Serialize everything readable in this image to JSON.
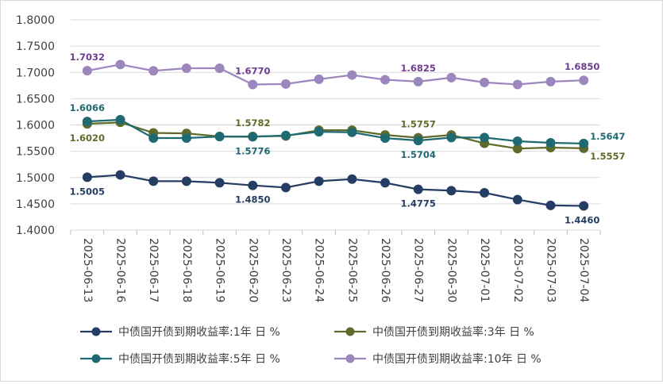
{
  "chart_data": {
    "type": "line",
    "title": "",
    "xlabel": "",
    "ylabel": "",
    "ylim": [
      1.4,
      1.8
    ],
    "yticks": [
      "1.4000",
      "1.4500",
      "1.5000",
      "1.5500",
      "1.6000",
      "1.6500",
      "1.7000",
      "1.7500",
      "1.8000"
    ],
    "categories": [
      "2025-06-13",
      "2025-06-16",
      "2025-06-17",
      "2025-06-18",
      "2025-06-19",
      "2025-06-20",
      "2025-06-23",
      "2025-06-24",
      "2025-06-25",
      "2025-06-26",
      "2025-06-27",
      "2025-06-30",
      "2025-07-01",
      "2025-07-02",
      "2025-07-03",
      "2025-07-04"
    ],
    "legend_position": "bottom",
    "series": [
      {
        "name": "中债国开债到期收益率:1年 日 %",
        "color": "#253D63",
        "values": [
          1.5005,
          1.505,
          1.493,
          1.493,
          1.49,
          1.485,
          1.481,
          1.493,
          1.497,
          1.49,
          1.4775,
          1.475,
          1.471,
          1.458,
          1.447,
          1.446
        ],
        "labels": [
          {
            "index": 0,
            "text": "1.5005",
            "pos": "below"
          },
          {
            "index": 5,
            "text": "1.4850",
            "pos": "below"
          },
          {
            "index": 10,
            "text": "1.4775",
            "pos": "below"
          },
          {
            "index": 15,
            "text": "1.4460",
            "pos": "below"
          }
        ]
      },
      {
        "name": "中债国开债到期收益率:3年 日 %",
        "color": "#5F6B2A",
        "values": [
          1.602,
          1.605,
          1.585,
          1.584,
          1.5782,
          1.5782,
          1.579,
          1.59,
          1.59,
          1.581,
          1.5757,
          1.581,
          1.565,
          1.555,
          1.557,
          1.5557
        ],
        "labels": [
          {
            "index": 0,
            "text": "1.6020",
            "pos": "below"
          },
          {
            "index": 5,
            "text": "1.5782",
            "pos": "above"
          },
          {
            "index": 10,
            "text": "1.5757",
            "pos": "above"
          },
          {
            "index": 15,
            "text": "1.5557",
            "pos": "below-right"
          }
        ]
      },
      {
        "name": "中债国开债到期收益率:5年 日 %",
        "color": "#1F6A72",
        "values": [
          1.6066,
          1.61,
          1.575,
          1.575,
          1.578,
          1.5776,
          1.58,
          1.587,
          1.586,
          1.575,
          1.5704,
          1.576,
          1.576,
          1.569,
          1.566,
          1.5647
        ],
        "labels": [
          {
            "index": 0,
            "text": "1.6066",
            "pos": "above"
          },
          {
            "index": 5,
            "text": "1.5776",
            "pos": "below"
          },
          {
            "index": 10,
            "text": "1.5704",
            "pos": "below"
          },
          {
            "index": 15,
            "text": "1.5647",
            "pos": "above-right"
          }
        ]
      },
      {
        "name": "中债国开债到期收益率:10年 日 %",
        "color": "#9B86BD",
        "labelColor": "#6F3D91",
        "values": [
          1.7032,
          1.715,
          1.703,
          1.708,
          1.708,
          1.677,
          1.678,
          1.687,
          1.695,
          1.686,
          1.6825,
          1.69,
          1.681,
          1.677,
          1.6825,
          1.685
        ],
        "labels": [
          {
            "index": 0,
            "text": "1.7032",
            "pos": "above"
          },
          {
            "index": 5,
            "text": "1.6770",
            "pos": "above"
          },
          {
            "index": 10,
            "text": "1.6825",
            "pos": "above"
          },
          {
            "index": 15,
            "text": "1.6850",
            "pos": "above"
          }
        ]
      }
    ]
  }
}
